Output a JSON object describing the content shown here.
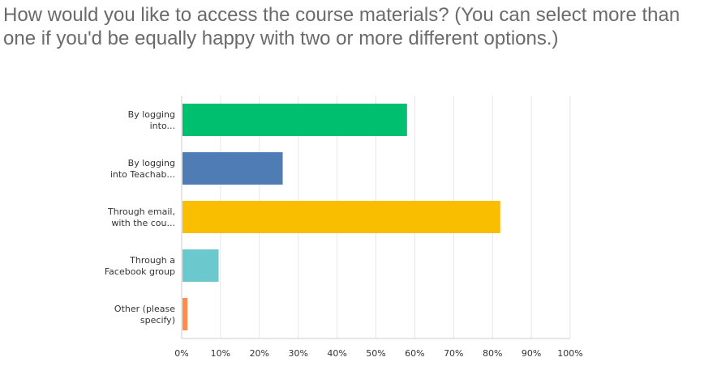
{
  "chart_data": {
    "type": "bar",
    "orientation": "horizontal",
    "title": "How would you like to access the course materials? (You can select more than one if you'd be equally happy with two or more different options.)",
    "categories": [
      [
        "By logging",
        "into..."
      ],
      [
        "By logging",
        "into Teachab..."
      ],
      [
        "Through email,",
        "with the cou..."
      ],
      [
        "Through a",
        "Facebook group"
      ],
      [
        "Other (please",
        "specify)"
      ]
    ],
    "values": [
      58,
      26,
      82,
      9.5,
      1.5
    ],
    "colors": [
      "#00bf6f",
      "#507cb6",
      "#f9be00",
      "#6bc8cd",
      "#ff8b4f"
    ],
    "xlim": [
      0,
      100
    ],
    "x_ticks": [
      "0%",
      "10%",
      "20%",
      "30%",
      "40%",
      "50%",
      "60%",
      "70%",
      "80%",
      "90%",
      "100%"
    ],
    "grid": true,
    "xlabel": "",
    "ylabel": ""
  }
}
